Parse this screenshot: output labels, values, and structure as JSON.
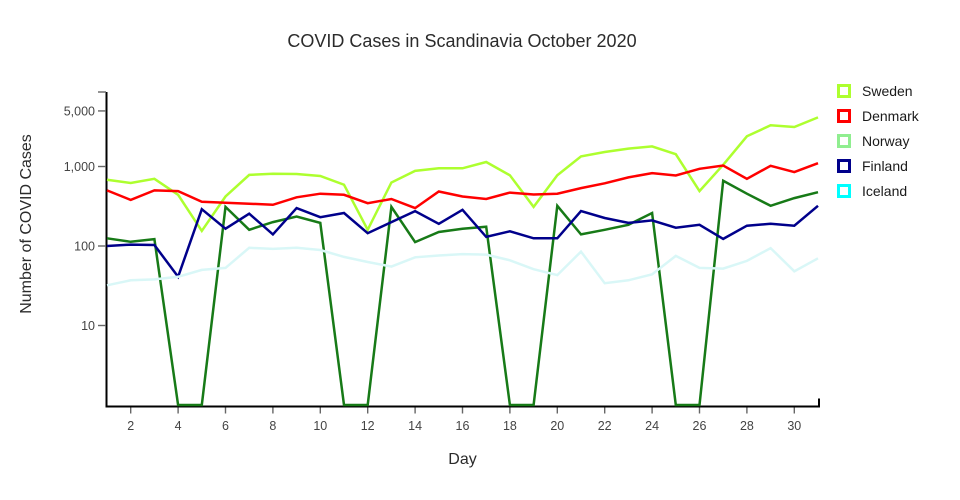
{
  "title": "COVID Cases in Scandinavia October 2020",
  "x_axis_label": "Day",
  "y_axis_label": "Number of COVID Cases",
  "chart_data": {
    "type": "line",
    "title": "COVID Cases in Scandinavia October 2020",
    "xlabel": "Day",
    "ylabel": "Number of COVID Cases",
    "yscale": "log",
    "xlim": [
      1,
      31
    ],
    "ylim": [
      1,
      8000
    ],
    "grid": false,
    "legend_position": "top-right",
    "x": [
      1,
      2,
      3,
      4,
      5,
      6,
      7,
      8,
      9,
      10,
      11,
      12,
      13,
      14,
      15,
      16,
      17,
      18,
      19,
      20,
      21,
      22,
      23,
      24,
      25,
      26,
      27,
      28,
      29,
      30,
      31
    ],
    "xticks": [
      2,
      4,
      6,
      8,
      10,
      12,
      14,
      16,
      18,
      20,
      22,
      24,
      26,
      28,
      30
    ],
    "yticks": [
      {
        "value": 5000,
        "label": "5,000"
      },
      {
        "value": 1000,
        "label": "1,000"
      },
      {
        "value": 100,
        "label": "100"
      },
      {
        "value": 10,
        "label": "10"
      }
    ],
    "axis_color": "#000000",
    "tick_color": "#666666",
    "tick_label_color": "#444444",
    "series": [
      {
        "name": "Sweden",
        "line_color": "#ADFF2F",
        "legend_color": "#ADFF2F",
        "values": [
          680,
          620,
          700,
          440,
          155,
          420,
          785,
          810,
          805,
          760,
          590,
          160,
          630,
          880,
          950,
          950,
          1140,
          775,
          310,
          775,
          1340,
          1520,
          1680,
          1790,
          1430,
          490,
          1050,
          2400,
          3300,
          3140,
          4150
        ]
      },
      {
        "name": "Denmark",
        "line_color": "#FF0000",
        "legend_color": "#FF0000",
        "values": [
          500,
          380,
          500,
          490,
          360,
          350,
          340,
          330,
          410,
          455,
          440,
          345,
          390,
          300,
          485,
          420,
          390,
          470,
          445,
          455,
          535,
          615,
          730,
          825,
          770,
          935,
          1030,
          700,
          1020,
          850,
          1100
        ]
      },
      {
        "name": "Norway",
        "line_color": "#177A17",
        "legend_color": "#90EE90",
        "values": [
          125,
          113,
          122,
          1,
          1,
          310,
          160,
          200,
          235,
          195,
          1,
          1,
          310,
          112,
          150,
          165,
          175,
          1,
          1,
          320,
          140,
          160,
          185,
          260,
          1,
          1,
          660,
          455,
          320,
          400,
          475
        ]
      },
      {
        "name": "Finland",
        "line_color": "#00008B",
        "legend_color": "#00008B",
        "values": [
          100,
          104,
          103,
          41,
          290,
          165,
          255,
          140,
          300,
          230,
          260,
          145,
          200,
          275,
          190,
          285,
          130,
          153,
          125,
          125,
          275,
          225,
          195,
          210,
          170,
          185,
          123,
          180,
          190,
          180,
          320
        ]
      },
      {
        "name": "Iceland",
        "line_color": "#D9F7F7",
        "legend_color": "#00FFFF",
        "values": [
          32,
          37,
          38,
          41,
          50,
          53,
          95,
          92,
          95,
          89,
          73,
          63,
          55,
          72,
          76,
          79,
          78,
          66,
          51,
          43,
          85,
          34,
          37,
          44,
          75,
          53,
          52,
          65,
          94,
          48,
          70
        ]
      }
    ]
  }
}
